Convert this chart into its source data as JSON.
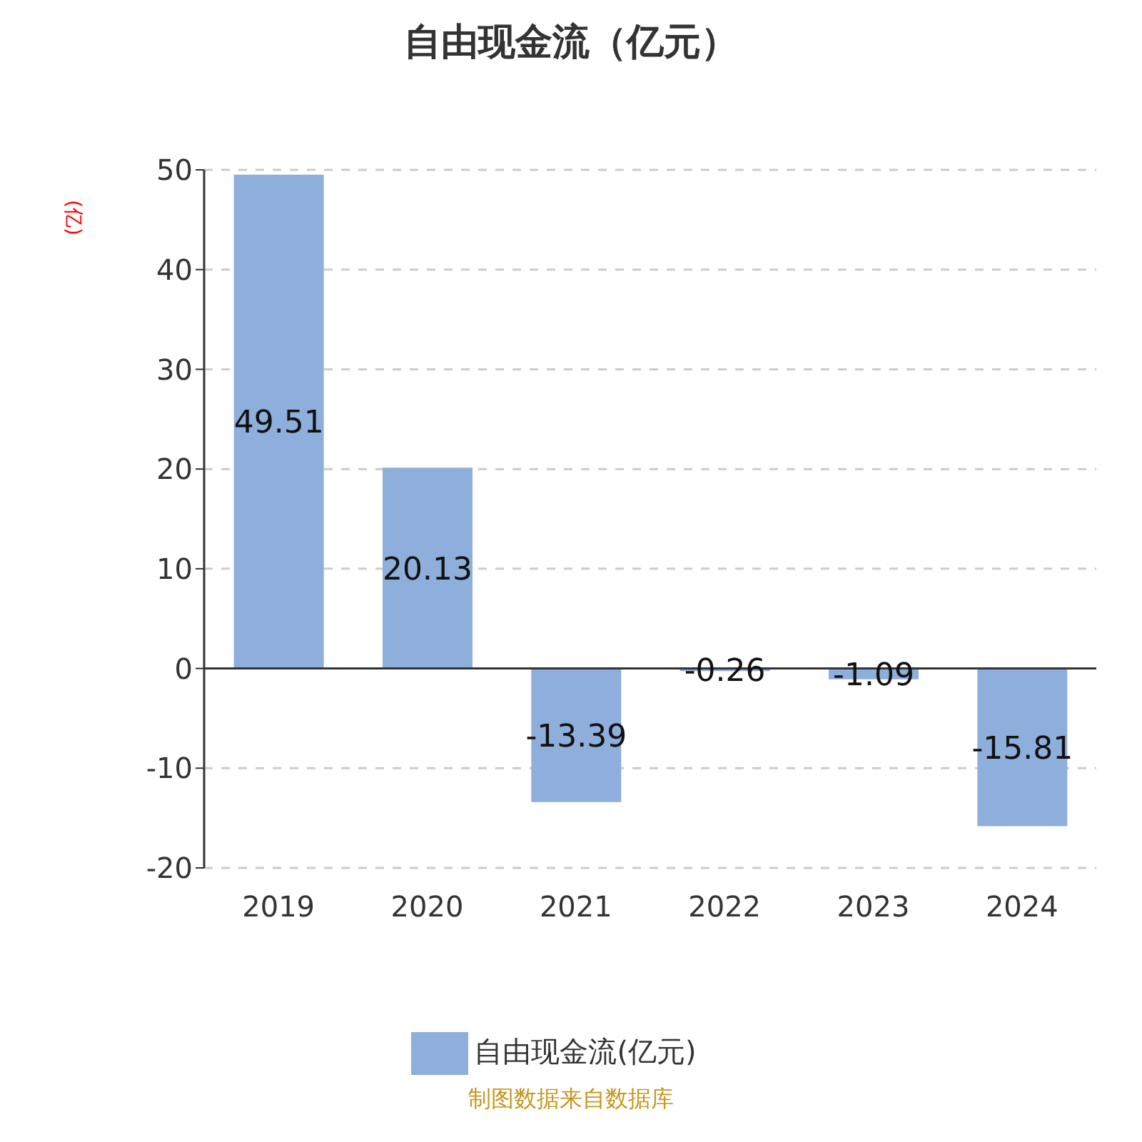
{
  "chart_data": {
    "type": "bar",
    "title": "自由现金流（亿元）",
    "ylabel": "(亿)",
    "categories": [
      "2019",
      "2020",
      "2021",
      "2022",
      "2023",
      "2024"
    ],
    "series": [
      {
        "name": "自由现金流(亿元)",
        "color": "#8eaedb",
        "values": [
          49.51,
          20.13,
          -13.39,
          -0.26,
          -1.09,
          -15.81
        ]
      }
    ],
    "ylim": [
      -20,
      50
    ],
    "yticks": [
      -20,
      -10,
      0,
      10,
      20,
      30,
      40,
      50
    ],
    "grid": "y",
    "legend": "bottom",
    "data_labels": true,
    "annotations": [
      "制图数据来自数据库"
    ]
  }
}
